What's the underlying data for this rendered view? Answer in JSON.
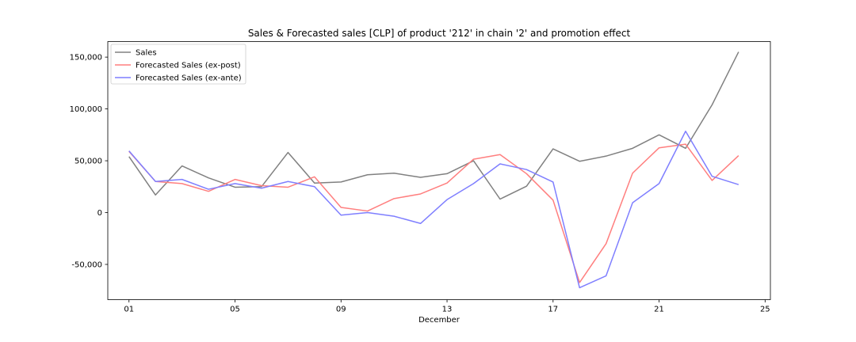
{
  "chart_data": {
    "type": "line",
    "title": "Sales & Forecasted sales [CLP] of product '212' in chain '2' and promotion effect",
    "xlabel": "December",
    "ylabel": "",
    "x": [
      1,
      2,
      3,
      4,
      5,
      6,
      7,
      8,
      9,
      10,
      11,
      12,
      13,
      14,
      15,
      16,
      17,
      18,
      19,
      20,
      21,
      22,
      23,
      24
    ],
    "xlim": [
      0.2,
      25.2
    ],
    "xticks": [
      1,
      5,
      9,
      13,
      17,
      21,
      25
    ],
    "xtick_labels": [
      "01",
      "05",
      "09",
      "13",
      "17",
      "21",
      "25"
    ],
    "ylim": [
      -84000,
      165000
    ],
    "yticks": [
      -50000,
      0,
      50000,
      100000,
      150000
    ],
    "ytick_labels": [
      "-50,000",
      "0",
      "50,000",
      "100,000",
      "150,000"
    ],
    "grid": false,
    "legend_position": "top-left",
    "series": [
      {
        "name": "Sales",
        "color": "#808080",
        "values": [
          54000,
          17000,
          45000,
          33500,
          24500,
          25000,
          58000,
          28500,
          29500,
          36500,
          38000,
          34000,
          37500,
          50000,
          13000,
          25500,
          61500,
          49500,
          54500,
          62000,
          75000,
          62000,
          104000,
          155000
        ]
      },
      {
        "name": "Forecasted Sales (ex-post)",
        "color": "#ff7f7f",
        "values": [
          59000,
          30000,
          28000,
          20500,
          32000,
          26000,
          24500,
          34500,
          5000,
          1500,
          13500,
          18000,
          28500,
          51500,
          56000,
          37500,
          12000,
          -67500,
          -30000,
          38000,
          62500,
          66000,
          31000,
          55000
        ]
      },
      {
        "name": "Forecasted Sales (ex-ante)",
        "color": "#7f7fff",
        "values": [
          59500,
          30000,
          32000,
          22500,
          28000,
          23500,
          30000,
          25000,
          -2500,
          0,
          -3500,
          -10500,
          12500,
          28000,
          47000,
          41500,
          29500,
          -72500,
          -61000,
          9500,
          28000,
          78500,
          35000,
          27000
        ]
      }
    ]
  }
}
